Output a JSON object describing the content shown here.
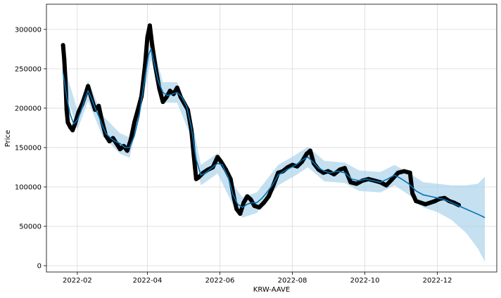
{
  "chart_data": {
    "type": "line",
    "title": "",
    "xlabel": "KRW-AAVE",
    "ylabel": "Price",
    "xlim": [
      "2022-01-06",
      "2023-01-20"
    ],
    "ylim": [
      -8000,
      332000
    ],
    "grid": true,
    "legend": "none",
    "x_ticks": [
      {
        "date": "2022-02-01",
        "label": "2022-02"
      },
      {
        "date": "2022-04-01",
        "label": "2022-04"
      },
      {
        "date": "2022-06-01",
        "label": "2022-06"
      },
      {
        "date": "2022-08-01",
        "label": "2022-08"
      },
      {
        "date": "2022-10-01",
        "label": "2022-10"
      },
      {
        "date": "2022-12-01",
        "label": "2022-12"
      }
    ],
    "y_ticks": [
      0,
      50000,
      100000,
      150000,
      200000,
      250000,
      300000
    ],
    "y_tick_labels": [
      "0",
      "50000",
      "100000",
      "150000",
      "200000",
      "250000",
      "300000"
    ],
    "colors": {
      "forecast": "#0072B2",
      "interval": "#a6cfe8",
      "observed": "#000000"
    },
    "series": [
      {
        "role": "observed",
        "points": [
          [
            "2022-01-20",
            280000
          ],
          [
            "2022-01-21",
            262000
          ],
          [
            "2022-01-22",
            235000
          ],
          [
            "2022-01-23",
            198000
          ],
          [
            "2022-01-24",
            182000
          ],
          [
            "2022-01-26",
            176000
          ],
          [
            "2022-01-28",
            172000
          ],
          [
            "2022-01-30",
            180000
          ],
          [
            "2022-02-02",
            195000
          ],
          [
            "2022-02-05",
            205000
          ],
          [
            "2022-02-08",
            218000
          ],
          [
            "2022-02-10",
            228000
          ],
          [
            "2022-02-13",
            212000
          ],
          [
            "2022-02-16",
            198000
          ],
          [
            "2022-02-19",
            203000
          ],
          [
            "2022-02-22",
            182000
          ],
          [
            "2022-02-25",
            165000
          ],
          [
            "2022-02-28",
            158000
          ],
          [
            "2022-03-03",
            162000
          ],
          [
            "2022-03-06",
            155000
          ],
          [
            "2022-03-09",
            148000
          ],
          [
            "2022-03-12",
            152000
          ],
          [
            "2022-03-15",
            146000
          ],
          [
            "2022-03-18",
            160000
          ],
          [
            "2022-03-21",
            182000
          ],
          [
            "2022-03-24",
            198000
          ],
          [
            "2022-03-27",
            215000
          ],
          [
            "2022-03-30",
            255000
          ],
          [
            "2022-04-01",
            290000
          ],
          [
            "2022-04-03",
            305000
          ],
          [
            "2022-04-05",
            280000
          ],
          [
            "2022-04-08",
            250000
          ],
          [
            "2022-04-11",
            225000
          ],
          [
            "2022-04-14",
            208000
          ],
          [
            "2022-04-17",
            214000
          ],
          [
            "2022-04-20",
            222000
          ],
          [
            "2022-04-23",
            218000
          ],
          [
            "2022-04-26",
            226000
          ],
          [
            "2022-04-29",
            214000
          ],
          [
            "2022-05-02",
            206000
          ],
          [
            "2022-05-05",
            198000
          ],
          [
            "2022-05-08",
            172000
          ],
          [
            "2022-05-10",
            140000
          ],
          [
            "2022-05-12",
            110000
          ],
          [
            "2022-05-14",
            112000
          ],
          [
            "2022-05-18",
            118000
          ],
          [
            "2022-05-22",
            122000
          ],
          [
            "2022-05-26",
            125000
          ],
          [
            "2022-05-30",
            138000
          ],
          [
            "2022-06-02",
            132000
          ],
          [
            "2022-06-06",
            122000
          ],
          [
            "2022-06-10",
            110000
          ],
          [
            "2022-06-13",
            85000
          ],
          [
            "2022-06-15",
            72000
          ],
          [
            "2022-06-18",
            66000
          ],
          [
            "2022-06-21",
            80000
          ],
          [
            "2022-06-24",
            88000
          ],
          [
            "2022-06-27",
            84000
          ],
          [
            "2022-06-30",
            76000
          ],
          [
            "2022-07-04",
            74000
          ],
          [
            "2022-07-08",
            80000
          ],
          [
            "2022-07-12",
            88000
          ],
          [
            "2022-07-16",
            102000
          ],
          [
            "2022-07-20",
            118000
          ],
          [
            "2022-07-24",
            120000
          ],
          [
            "2022-07-28",
            125000
          ],
          [
            "2022-08-01",
            128000
          ],
          [
            "2022-08-05",
            126000
          ],
          [
            "2022-08-09",
            132000
          ],
          [
            "2022-08-13",
            142000
          ],
          [
            "2022-08-16",
            146000
          ],
          [
            "2022-08-19",
            130000
          ],
          [
            "2022-08-23",
            122000
          ],
          [
            "2022-08-27",
            118000
          ],
          [
            "2022-08-31",
            120000
          ],
          [
            "2022-09-05",
            116000
          ],
          [
            "2022-09-10",
            122000
          ],
          [
            "2022-09-14",
            124000
          ],
          [
            "2022-09-19",
            106000
          ],
          [
            "2022-09-24",
            104000
          ],
          [
            "2022-09-29",
            108000
          ],
          [
            "2022-10-04",
            110000
          ],
          [
            "2022-10-09",
            108000
          ],
          [
            "2022-10-14",
            106000
          ],
          [
            "2022-10-19",
            102000
          ],
          [
            "2022-10-24",
            110000
          ],
          [
            "2022-10-29",
            118000
          ],
          [
            "2022-11-03",
            120000
          ],
          [
            "2022-11-08",
            118000
          ],
          [
            "2022-11-09",
            105000
          ],
          [
            "2022-11-10",
            92000
          ],
          [
            "2022-11-13",
            82000
          ],
          [
            "2022-11-17",
            80000
          ],
          [
            "2022-11-21",
            78000
          ],
          [
            "2022-11-25",
            80000
          ],
          [
            "2022-11-29",
            82000
          ],
          [
            "2022-12-03",
            85000
          ],
          [
            "2022-12-07",
            86000
          ],
          [
            "2022-12-11",
            82000
          ],
          [
            "2022-12-15",
            80000
          ],
          [
            "2022-12-19",
            77000
          ]
        ]
      },
      {
        "role": "forecast",
        "points": [
          [
            "2022-01-20",
            245000
          ],
          [
            "2022-01-23",
            215000
          ],
          [
            "2022-01-26",
            192000
          ],
          [
            "2022-01-29",
            180000
          ],
          [
            "2022-02-01",
            185000
          ],
          [
            "2022-02-04",
            196000
          ],
          [
            "2022-02-07",
            210000
          ],
          [
            "2022-02-10",
            222000
          ],
          [
            "2022-02-13",
            212000
          ],
          [
            "2022-02-16",
            200000
          ],
          [
            "2022-02-19",
            190000
          ],
          [
            "2022-02-22",
            178000
          ],
          [
            "2022-02-25",
            168000
          ],
          [
            "2022-03-01",
            162000
          ],
          [
            "2022-03-05",
            158000
          ],
          [
            "2022-03-09",
            155000
          ],
          [
            "2022-03-13",
            150000
          ],
          [
            "2022-03-17",
            150000
          ],
          [
            "2022-03-21",
            165000
          ],
          [
            "2022-03-25",
            190000
          ],
          [
            "2022-03-29",
            230000
          ],
          [
            "2022-04-02",
            268000
          ],
          [
            "2022-04-04",
            275000
          ],
          [
            "2022-04-07",
            255000
          ],
          [
            "2022-04-10",
            235000
          ],
          [
            "2022-04-14",
            220000
          ],
          [
            "2022-04-18",
            216000
          ],
          [
            "2022-04-22",
            218000
          ],
          [
            "2022-04-26",
            220000
          ],
          [
            "2022-04-30",
            214000
          ],
          [
            "2022-05-04",
            202000
          ],
          [
            "2022-05-08",
            175000
          ],
          [
            "2022-05-12",
            135000
          ],
          [
            "2022-05-16",
            115000
          ],
          [
            "2022-05-20",
            118000
          ],
          [
            "2022-05-25",
            124000
          ],
          [
            "2022-05-30",
            130000
          ],
          [
            "2022-06-03",
            128000
          ],
          [
            "2022-06-08",
            112000
          ],
          [
            "2022-06-12",
            90000
          ],
          [
            "2022-06-16",
            78000
          ],
          [
            "2022-06-20",
            74000
          ],
          [
            "2022-06-24",
            78000
          ],
          [
            "2022-06-28",
            80000
          ],
          [
            "2022-07-02",
            80000
          ],
          [
            "2022-07-06",
            85000
          ],
          [
            "2022-07-10",
            92000
          ],
          [
            "2022-07-15",
            102000
          ],
          [
            "2022-07-20",
            115000
          ],
          [
            "2022-07-25",
            120000
          ],
          [
            "2022-07-30",
            124000
          ],
          [
            "2022-08-04",
            128000
          ],
          [
            "2022-08-09",
            134000
          ],
          [
            "2022-08-14",
            138000
          ],
          [
            "2022-08-18",
            132000
          ],
          [
            "2022-08-23",
            124000
          ],
          [
            "2022-08-28",
            120000
          ],
          [
            "2022-09-02",
            118000
          ],
          [
            "2022-09-08",
            120000
          ],
          [
            "2022-09-14",
            118000
          ],
          [
            "2022-09-20",
            110000
          ],
          [
            "2022-09-26",
            108000
          ],
          [
            "2022-10-02",
            110000
          ],
          [
            "2022-10-08",
            108000
          ],
          [
            "2022-10-14",
            106000
          ],
          [
            "2022-10-20",
            110000
          ],
          [
            "2022-10-26",
            115000
          ],
          [
            "2022-11-01",
            110000
          ],
          [
            "2022-11-07",
            104000
          ],
          [
            "2022-11-13",
            95000
          ],
          [
            "2022-11-19",
            90000
          ],
          [
            "2022-11-25",
            88000
          ],
          [
            "2022-12-01",
            86000
          ],
          [
            "2022-12-07",
            84000
          ],
          [
            "2022-12-13",
            80000
          ],
          [
            "2022-12-19",
            76000
          ],
          [
            "2022-12-25",
            72000
          ],
          [
            "2022-12-31",
            68000
          ],
          [
            "2023-01-06",
            64000
          ],
          [
            "2023-01-10",
            61000
          ]
        ]
      }
    ],
    "interval": {
      "points": [
        [
          "2022-01-20",
          232000,
          258000
        ],
        [
          "2022-02-01",
          172000,
          198000
        ],
        [
          "2022-02-10",
          209000,
          235000
        ],
        [
          "2022-02-22",
          165000,
          191000
        ],
        [
          "2022-03-09",
          142000,
          168000
        ],
        [
          "2022-03-17",
          137000,
          163000
        ],
        [
          "2022-03-29",
          217000,
          243000
        ],
        [
          "2022-04-04",
          262000,
          288000
        ],
        [
          "2022-04-14",
          207000,
          233000
        ],
        [
          "2022-04-26",
          207000,
          233000
        ],
        [
          "2022-05-08",
          162000,
          188000
        ],
        [
          "2022-05-16",
          102000,
          128000
        ],
        [
          "2022-05-30",
          117000,
          143000
        ],
        [
          "2022-06-12",
          77000,
          103000
        ],
        [
          "2022-06-20",
          61000,
          87000
        ],
        [
          "2022-07-02",
          67000,
          93000
        ],
        [
          "2022-07-20",
          102000,
          128000
        ],
        [
          "2022-08-04",
          115000,
          141000
        ],
        [
          "2022-08-14",
          125000,
          151000
        ],
        [
          "2022-08-28",
          107000,
          133000
        ],
        [
          "2022-09-14",
          105000,
          131000
        ],
        [
          "2022-09-26",
          95000,
          121000
        ],
        [
          "2022-10-14",
          93000,
          119000
        ],
        [
          "2022-10-26",
          102000,
          128000
        ],
        [
          "2022-11-07",
          90000,
          118000
        ],
        [
          "2022-11-19",
          74000,
          106000
        ],
        [
          "2022-12-01",
          68000,
          104000
        ],
        [
          "2022-12-13",
          58000,
          102000
        ],
        [
          "2022-12-25",
          42000,
          102000
        ],
        [
          "2023-01-04",
          22000,
          104000
        ],
        [
          "2023-01-10",
          5000,
          113000
        ]
      ]
    }
  }
}
